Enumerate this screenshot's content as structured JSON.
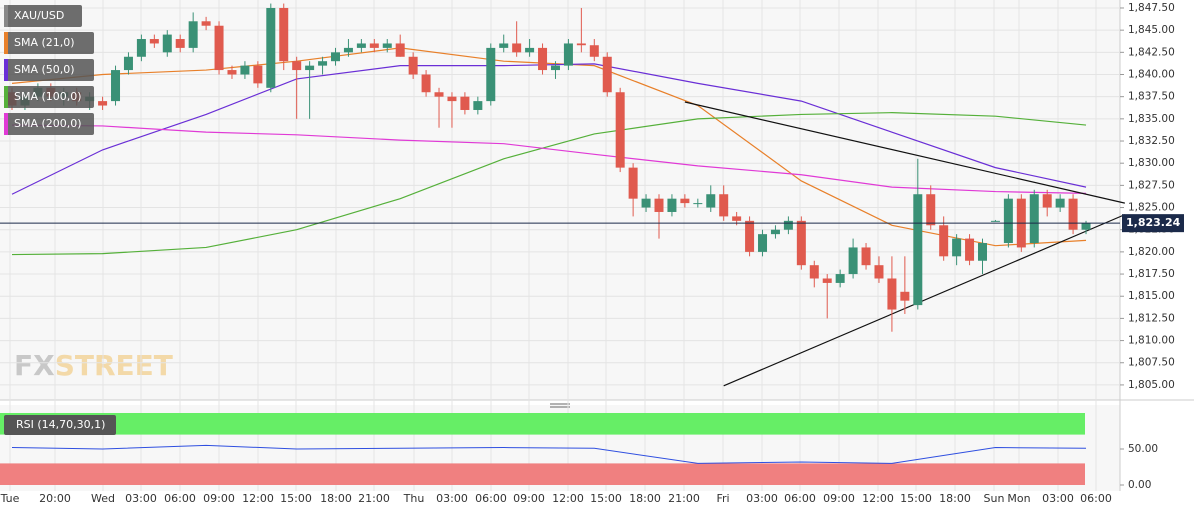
{
  "chart_data": {
    "type": "candlestick",
    "symbol": "XAU/USD",
    "ylim": [
      1803.3,
      1848.4
    ],
    "yticks": [
      {
        "value": 1805,
        "label": "1,805.00"
      },
      {
        "value": 1807.5,
        "label": "1,807.50"
      },
      {
        "value": 1810,
        "label": "1,810.00"
      },
      {
        "value": 1812.5,
        "label": "1,812.50"
      },
      {
        "value": 1815,
        "label": "1,815.00"
      },
      {
        "value": 1817.5,
        "label": "1,817.50"
      },
      {
        "value": 1820,
        "label": "1,820.00"
      },
      {
        "value": 1822.5,
        "label": "1,822.50"
      },
      {
        "value": 1825,
        "label": "1,825.00"
      },
      {
        "value": 1827.5,
        "label": "1,827.50"
      },
      {
        "value": 1830,
        "label": "1,830.00"
      },
      {
        "value": 1832.5,
        "label": "1,832.50"
      },
      {
        "value": 1835,
        "label": "1,835.00"
      },
      {
        "value": 1837.5,
        "label": "1,837.50"
      },
      {
        "value": 1840,
        "label": "1,840.00"
      },
      {
        "value": 1842.5,
        "label": "1,842.50"
      },
      {
        "value": 1845,
        "label": "1,845.00"
      },
      {
        "value": 1847.5,
        "label": "1,847.50"
      }
    ],
    "x_labels": [
      "Tue",
      "20:00",
      "Wed",
      "03:00",
      "06:00",
      "09:00",
      "12:00",
      "15:00",
      "18:00",
      "21:00",
      "Thu",
      "03:00",
      "06:00",
      "09:00",
      "12:00",
      "15:00",
      "18:00",
      "21:00",
      "Fri",
      "03:00",
      "06:00",
      "09:00",
      "12:00",
      "15:00",
      "18:00",
      "Sun",
      "Mon",
      "03:00",
      "06:00"
    ],
    "colors": {
      "up": "#3a9176",
      "down": "#e05a4e"
    },
    "candles": [
      [
        1838,
        1838.5,
        1836,
        1836.5
      ],
      [
        1836.5,
        1838,
        1836,
        1837.5
      ],
      [
        1837.5,
        1839,
        1837,
        1838.5
      ],
      [
        1838.5,
        1839,
        1837,
        1837.5
      ],
      [
        1837.5,
        1838.5,
        1836.5,
        1838
      ],
      [
        1838,
        1838.5,
        1836.5,
        1837
      ],
      [
        1837,
        1838,
        1836,
        1837.5
      ],
      [
        1837,
        1837.5,
        1836,
        1836.5
      ],
      [
        1837,
        1841,
        1836.5,
        1840.5
      ],
      [
        1840.5,
        1842.5,
        1840,
        1842
      ],
      [
        1842,
        1844.5,
        1841.5,
        1844
      ],
      [
        1844,
        1844.5,
        1843,
        1843.5
      ],
      [
        1842.5,
        1845,
        1842,
        1844.5
      ],
      [
        1844,
        1844.5,
        1842.5,
        1843
      ],
      [
        1843,
        1847,
        1842.5,
        1846
      ],
      [
        1846,
        1846.5,
        1845,
        1845.5
      ],
      [
        1845.5,
        1846,
        1840,
        1840.5
      ],
      [
        1840.5,
        1841,
        1839.5,
        1840
      ],
      [
        1840,
        1841.5,
        1839.5,
        1841
      ],
      [
        1841,
        1841.5,
        1838.5,
        1839
      ],
      [
        1838.5,
        1848,
        1838,
        1847.5
      ],
      [
        1847.5,
        1848,
        1840.5,
        1841.5
      ],
      [
        1841.5,
        1842,
        1835,
        1840.5
      ],
      [
        1840.5,
        1841.5,
        1835,
        1841
      ],
      [
        1841,
        1842,
        1840,
        1841.5
      ],
      [
        1841.5,
        1843,
        1841,
        1842.5
      ],
      [
        1842.5,
        1844,
        1842,
        1843
      ],
      [
        1843,
        1844,
        1842.5,
        1843.5
      ],
      [
        1843.5,
        1844,
        1842.5,
        1843
      ],
      [
        1843,
        1844,
        1842.5,
        1843.5
      ],
      [
        1843.5,
        1844.5,
        1842,
        1842
      ],
      [
        1842,
        1842.5,
        1839.5,
        1840
      ],
      [
        1840,
        1840.5,
        1837.5,
        1838
      ],
      [
        1838,
        1838.5,
        1834,
        1837.5
      ],
      [
        1837.5,
        1838,
        1834,
        1837
      ],
      [
        1837.5,
        1838,
        1835.5,
        1836
      ],
      [
        1836,
        1837.5,
        1835.5,
        1837
      ],
      [
        1837,
        1843.5,
        1836.5,
        1843
      ],
      [
        1843,
        1844.5,
        1842.5,
        1843.5
      ],
      [
        1843.5,
        1846,
        1842,
        1842.5
      ],
      [
        1842.5,
        1844,
        1842,
        1843
      ],
      [
        1843,
        1843.5,
        1840,
        1840.5
      ],
      [
        1840.5,
        1841.5,
        1839.5,
        1841
      ],
      [
        1841,
        1844,
        1840.5,
        1843.5
      ],
      [
        1843.5,
        1847.5,
        1842.5,
        1843.3
      ],
      [
        1843.3,
        1844,
        1841.5,
        1842
      ],
      [
        1842,
        1842.5,
        1837.5,
        1838
      ],
      [
        1838,
        1838.5,
        1829,
        1829.5
      ],
      [
        1829.5,
        1830,
        1824,
        1826
      ],
      [
        1825,
        1826.5,
        1824.5,
        1826
      ],
      [
        1826,
        1826.5,
        1821.5,
        1824.5
      ],
      [
        1824.5,
        1826.5,
        1824,
        1826
      ],
      [
        1826,
        1826.5,
        1825,
        1825.5
      ],
      [
        1825.5,
        1826,
        1825,
        1825.5
      ],
      [
        1825,
        1827.5,
        1824.5,
        1826.5
      ],
      [
        1826.5,
        1827.5,
        1823.5,
        1824
      ],
      [
        1824,
        1824.5,
        1823,
        1823.5
      ],
      [
        1823.5,
        1824,
        1819.5,
        1820
      ],
      [
        1820,
        1822.5,
        1819.5,
        1822
      ],
      [
        1822,
        1823,
        1821.5,
        1822.5
      ],
      [
        1822.5,
        1824,
        1822,
        1823.5
      ],
      [
        1823.5,
        1824,
        1818,
        1818.5
      ],
      [
        1818.5,
        1819,
        1816,
        1817
      ],
      [
        1817,
        1817.5,
        1812.5,
        1816.5
      ],
      [
        1816.5,
        1818,
        1816,
        1817.5
      ],
      [
        1817.5,
        1821.5,
        1817,
        1820.5
      ],
      [
        1820.5,
        1821,
        1818,
        1818.5
      ],
      [
        1818.5,
        1819.5,
        1816.5,
        1817
      ],
      [
        1817,
        1819.5,
        1811,
        1813.5
      ],
      [
        1815.5,
        1819.5,
        1813,
        1814.5
      ],
      [
        1814,
        1830.5,
        1813.5,
        1826.5
      ],
      [
        1826.5,
        1827.5,
        1822.5,
        1823
      ],
      [
        1823,
        1824,
        1819,
        1819.5
      ],
      [
        1819.5,
        1822,
        1818.5,
        1821.5
      ],
      [
        1821.5,
        1822,
        1818.5,
        1819
      ],
      [
        1819,
        1821.5,
        1817.5,
        1821
      ],
      [
        1823.5,
        1823.6,
        1823.4,
        1823.5
      ],
      [
        1821,
        1826.5,
        1820.5,
        1826
      ],
      [
        1826,
        1826.5,
        1820,
        1820.5
      ],
      [
        1821,
        1827,
        1820.5,
        1826.5
      ],
      [
        1826.5,
        1827,
        1824,
        1825
      ],
      [
        1825,
        1826.5,
        1824.5,
        1826
      ],
      [
        1826,
        1826.5,
        1822,
        1822.5
      ],
      [
        1822.5,
        1823.5,
        1822,
        1823.24
      ]
    ],
    "overlay_index": [
      0,
      7,
      15,
      22,
      30,
      38,
      45,
      53,
      61,
      68,
      76,
      83
    ],
    "overlays": [
      {
        "name": "SMA (21,0)",
        "color": "#e8802a",
        "values": [
          1839,
          1840,
          1840.5,
          1841.5,
          1843,
          1841.5,
          1841,
          1836.5,
          1828,
          1823,
          1820.7,
          1821.3
        ]
      },
      {
        "name": "SMA (50,0)",
        "color": "#6a2fd6",
        "values": [
          1826.5,
          1831.5,
          1835.5,
          1839.5,
          1841,
          1841,
          1841.2,
          1839,
          1837,
          1833.5,
          1829.5,
          1827.3
        ]
      },
      {
        "name": "SMA (100,0)",
        "color": "#55b03a",
        "values": [
          1819.7,
          1819.8,
          1820.5,
          1822.5,
          1826,
          1830.5,
          1833.3,
          1835,
          1835.5,
          1835.7,
          1835.3,
          1834.3
        ]
      },
      {
        "name": "SMA (200,0)",
        "color": "#e03ad6",
        "values": [
          1834.3,
          1834.2,
          1833.5,
          1833.2,
          1832.6,
          1832.2,
          1831,
          1829.7,
          1828.7,
          1827.3,
          1826.8,
          1826.6
        ]
      }
    ],
    "trendlines": [
      {
        "x": [
          52,
          86
        ],
        "values": [
          1836.9,
          1825.5
        ]
      },
      {
        "x": [
          55,
          86
        ],
        "values": [
          1804.9,
          1824.2
        ]
      }
    ],
    "last_price": {
      "value": 1823.24,
      "label": "1,823.24"
    },
    "rsi": {
      "label": "RSI (14,70,30,1)",
      "color": "#2f4fe0",
      "ylim": [
        0,
        100
      ],
      "yticks": [
        {
          "value": 50,
          "label": "50.00"
        },
        {
          "value": 0,
          "label": "0.00"
        }
      ],
      "levels": [
        70,
        30
      ],
      "values": [
        52,
        50,
        55,
        50,
        51,
        52,
        51,
        30,
        32,
        30,
        52,
        51
      ]
    },
    "watermark": [
      "FX",
      "STREET"
    ]
  }
}
